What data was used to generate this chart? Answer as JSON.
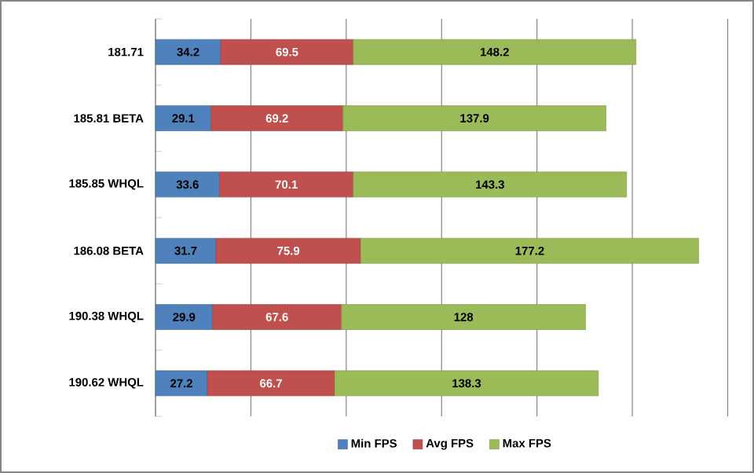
{
  "chart_data": {
    "type": "bar",
    "orientation": "horizontal",
    "stacked": true,
    "categories": [
      "181.71",
      "185.81 BETA",
      "185.85 WHQL",
      "186.08 BETA",
      "190.38 WHQL",
      "190.62 WHQL"
    ],
    "series": [
      {
        "name": "Min FPS",
        "color": "#4f81bd",
        "values": [
          34.2,
          29.1,
          33.6,
          31.7,
          29.9,
          27.2
        ]
      },
      {
        "name": "Avg FPS",
        "color": "#c0504d",
        "values": [
          69.5,
          69.2,
          70.1,
          75.9,
          67.6,
          66.7
        ]
      },
      {
        "name": "Max FPS",
        "color": "#9bbb59",
        "values": [
          148.2,
          137.9,
          143.3,
          177.2,
          128,
          138.3
        ]
      }
    ],
    "tick_labels": "y",
    "grid": "x",
    "legend": "bottom",
    "data_labels": true
  }
}
